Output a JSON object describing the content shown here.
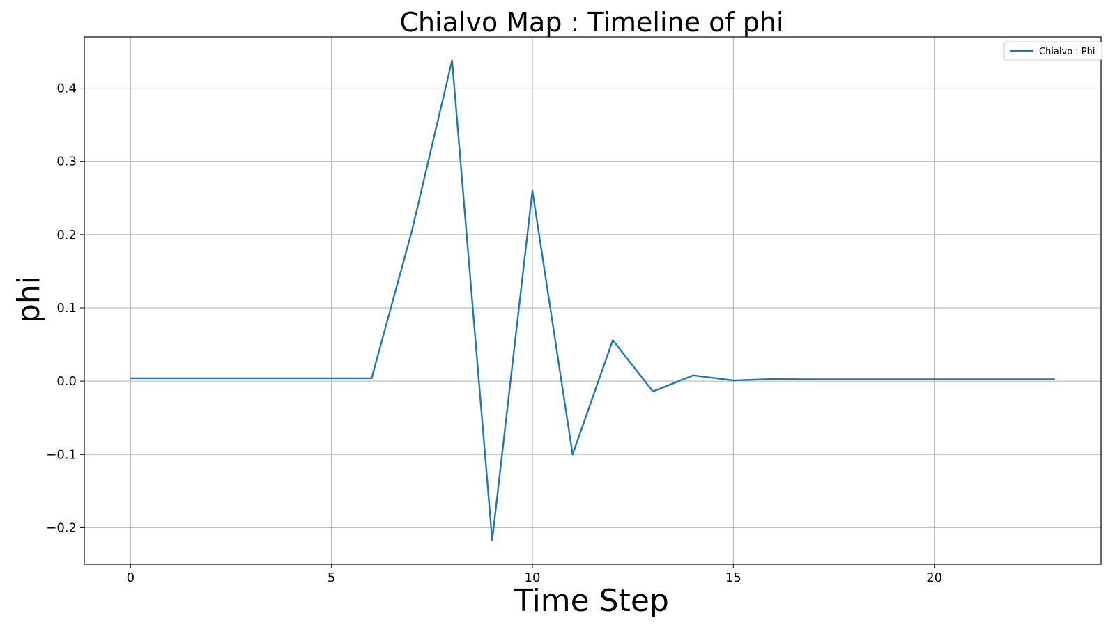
{
  "chart_data": {
    "type": "line",
    "title": "Chialvo Map : Timeline of phi",
    "xlabel": "Time Step",
    "ylabel": "phi",
    "xlim": [
      -1.15,
      24.15
    ],
    "ylim": [
      -0.25,
      0.47
    ],
    "xticks": [
      0,
      5,
      10,
      15,
      20
    ],
    "xtick_labels": [
      "0",
      "5",
      "10",
      "15",
      "20"
    ],
    "yticks": [
      -0.2,
      -0.1,
      0.0,
      0.1,
      0.2,
      0.3,
      0.4
    ],
    "ytick_labels": [
      "−0.2",
      "−0.1",
      "0.0",
      "0.1",
      "0.2",
      "0.3",
      "0.4"
    ],
    "grid": true,
    "legend_position": "top-right",
    "series": [
      {
        "name": "Chialvo : Phi",
        "color": "#1f77b4",
        "x": [
          0,
          1,
          2,
          3,
          4,
          5,
          6,
          7,
          8,
          9,
          10,
          11,
          12,
          13,
          14,
          15,
          16,
          17,
          18,
          19,
          20,
          21,
          22,
          23
        ],
        "y": [
          0.004,
          0.004,
          0.004,
          0.004,
          0.004,
          0.004,
          0.004,
          0.205,
          0.438,
          -0.217,
          0.26,
          -0.1,
          0.056,
          -0.014,
          0.008,
          0.001,
          0.003,
          0.0025,
          0.0025,
          0.0025,
          0.0025,
          0.0025,
          0.0025,
          0.0025
        ]
      }
    ]
  }
}
